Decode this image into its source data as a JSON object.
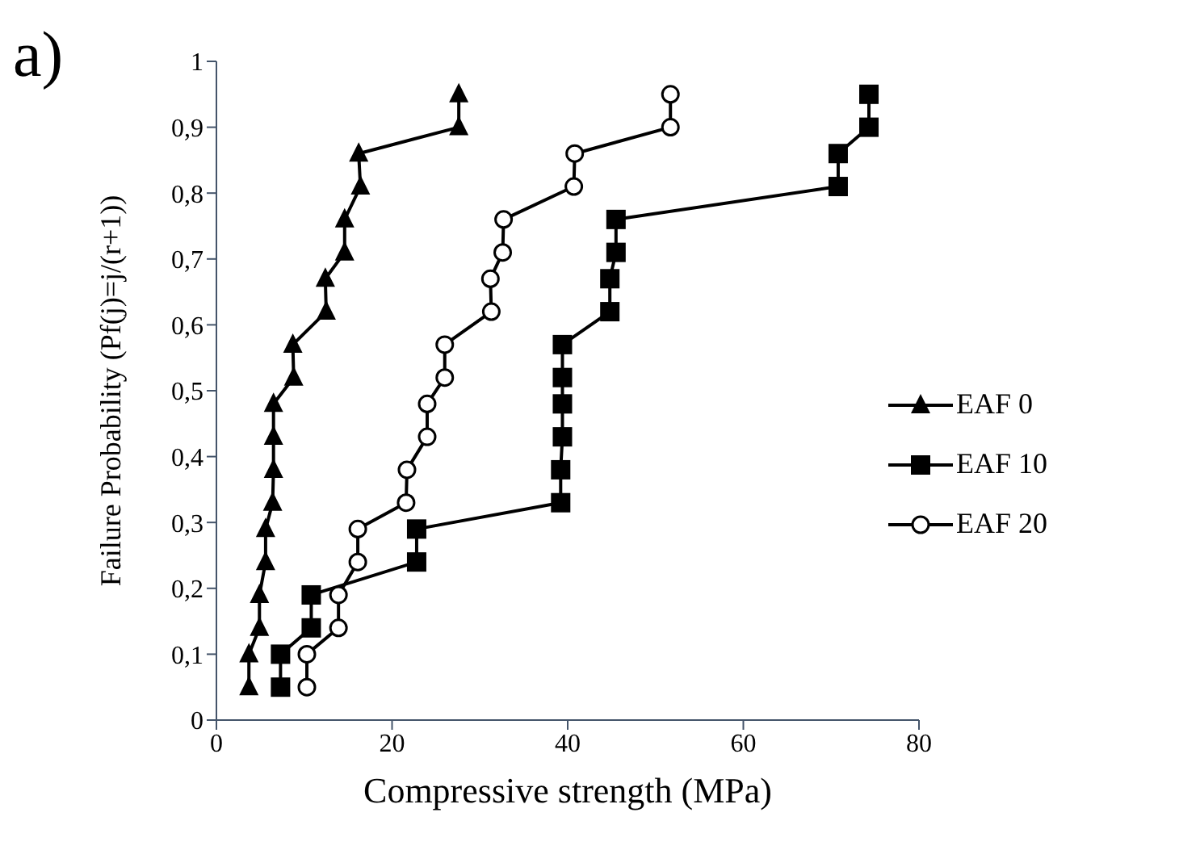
{
  "chart_data": {
    "type": "line",
    "xlabel": "Compressive strength (MPa)",
    "ylabel": "Failure Probability (Pf(j)=j/(r+1))",
    "annotations": [
      "a)"
    ],
    "xlim": [
      0,
      80
    ],
    "xticks": [
      0,
      20,
      40,
      60,
      80
    ],
    "ylim": [
      0,
      1
    ],
    "yticks": [
      0,
      {
        "value": 0.1,
        "label": "0,1"
      },
      {
        "value": 0.2,
        "label": "0,2"
      },
      {
        "value": 0.3,
        "label": "0,3"
      },
      {
        "value": 0.4,
        "label": "0,4"
      },
      {
        "value": 0.5,
        "label": "0,5"
      },
      {
        "value": 0.6,
        "label": "0,6"
      },
      {
        "value": 0.7,
        "label": "0,7"
      },
      {
        "value": 0.8,
        "label": "0,8"
      },
      {
        "value": 0.9,
        "label": "0,9"
      },
      1
    ],
    "grid": false,
    "legend": "right",
    "line_style": "solid",
    "series": [
      {
        "name": "EAF 0",
        "color": "#000000",
        "marker": "triangle",
        "x": [
          3.7,
          3.7,
          4.9,
          4.9,
          5.6,
          5.6,
          6.4,
          6.5,
          6.5,
          6.5,
          8.8,
          8.7,
          12.5,
          12.4,
          14.6,
          14.6,
          16.4,
          16.2,
          27.6,
          27.6
        ],
        "values": [
          0.05,
          0.1,
          0.14,
          0.19,
          0.24,
          0.29,
          0.33,
          0.38,
          0.43,
          0.48,
          0.52,
          0.57,
          0.62,
          0.67,
          0.71,
          0.76,
          0.81,
          0.86,
          0.9,
          0.95
        ]
      },
      {
        "name": "EAF 10",
        "color": "#000000",
        "marker": "square",
        "x": [
          7.3,
          7.3,
          10.8,
          10.8,
          22.8,
          22.8,
          39.2,
          39.2,
          39.4,
          39.4,
          39.4,
          39.4,
          44.8,
          44.8,
          45.5,
          45.5,
          70.8,
          70.8,
          74.3,
          74.3
        ],
        "values": [
          0.05,
          0.1,
          0.14,
          0.19,
          0.24,
          0.29,
          0.33,
          0.38,
          0.43,
          0.48,
          0.52,
          0.57,
          0.62,
          0.67,
          0.71,
          0.76,
          0.81,
          0.86,
          0.9,
          0.95
        ]
      },
      {
        "name": "EAF 20",
        "color": "#000000",
        "marker": "circle",
        "x": [
          10.3,
          10.3,
          13.9,
          13.9,
          16.1,
          16.1,
          21.6,
          21.7,
          24.0,
          24.0,
          26.0,
          26.0,
          31.3,
          31.2,
          32.6,
          32.7,
          40.7,
          40.8,
          51.7,
          51.7
        ],
        "values": [
          0.05,
          0.1,
          0.14,
          0.19,
          0.24,
          0.29,
          0.33,
          0.38,
          0.43,
          0.48,
          0.52,
          0.57,
          0.62,
          0.67,
          0.71,
          0.76,
          0.81,
          0.86,
          0.9,
          0.95
        ]
      }
    ]
  }
}
